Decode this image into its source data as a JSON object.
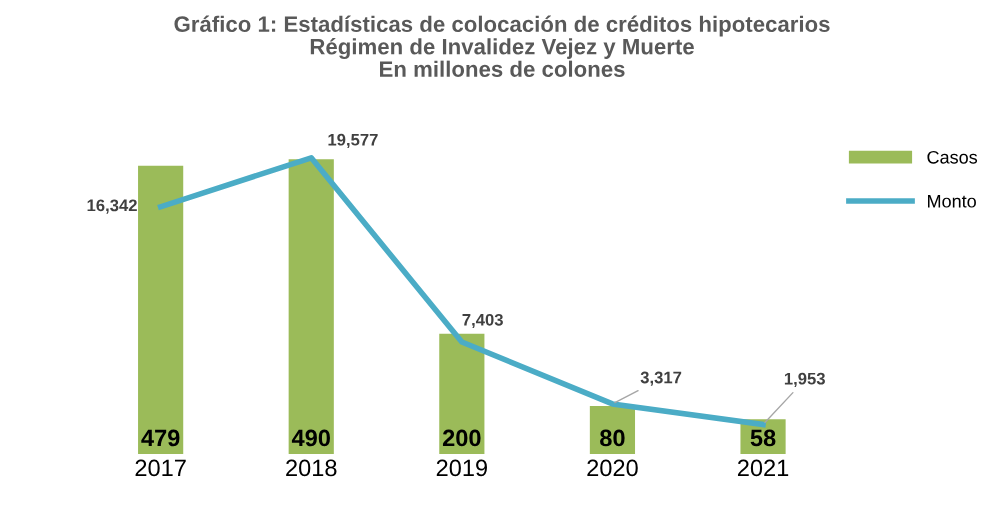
{
  "chart_data": {
    "type": "bar",
    "title": "Gráfico 1: Estadísticas de colocación de créditos hipotecarios\nRégimen de Invalidez Vejez y Muerte\nEn millones de colones",
    "categories": [
      "2017",
      "2018",
      "2019",
      "2020",
      "2021"
    ],
    "series": [
      {
        "name": "Casos",
        "color": "#9bbb59",
        "values": [
          479,
          490,
          200,
          80,
          58
        ]
      },
      {
        "name": "Monto",
        "type": "line",
        "axis": "y2",
        "color": "#4bacc6",
        "values": [
          16342,
          19577,
          7403,
          3317,
          1953
        ],
        "value_labels": [
          "16,342",
          "19,577",
          "7,403",
          "3,317",
          "1,953"
        ]
      }
    ],
    "tick_labels": "x",
    "data_labels": true,
    "grid": false,
    "legend": "right",
    "marker": "none",
    "line_style": "solid"
  }
}
